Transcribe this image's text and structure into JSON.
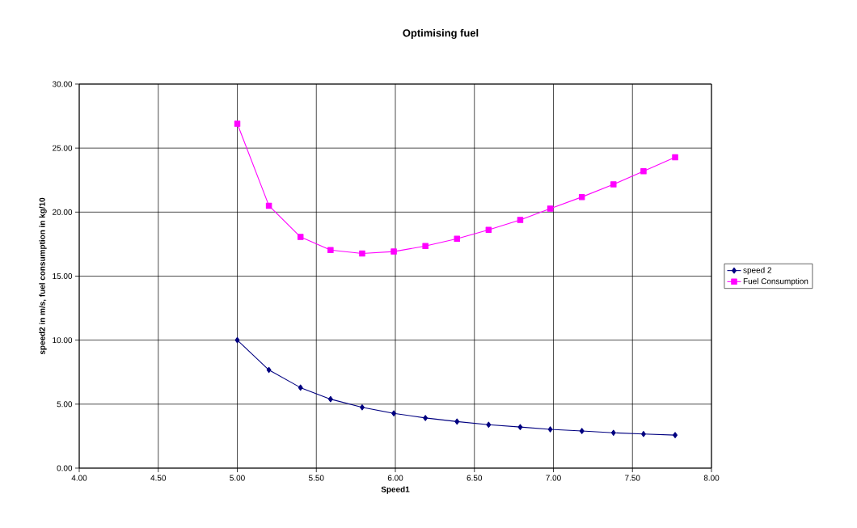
{
  "chart_data": {
    "type": "line",
    "title": "Optimising fuel",
    "xlabel": "Speed1",
    "ylabel": "speed2 in m/s, fuel consumption in kg/10",
    "x": [
      5.0,
      5.2,
      5.4,
      5.59,
      5.79,
      5.99,
      6.19,
      6.39,
      6.59,
      6.79,
      6.98,
      7.18,
      7.38,
      7.57,
      7.77
    ],
    "series": [
      {
        "name": "speed 2",
        "color": "#000080",
        "marker": "diamond",
        "values": [
          10.0,
          7.67,
          6.29,
          5.39,
          4.75,
          4.28,
          3.92,
          3.64,
          3.39,
          3.21,
          3.03,
          2.9,
          2.76,
          2.67,
          2.58
        ]
      },
      {
        "name": "Fuel Consumption",
        "color": "#ff00ff",
        "marker": "square",
        "values": [
          26.9,
          20.5,
          18.06,
          17.04,
          16.77,
          16.92,
          17.35,
          17.92,
          18.62,
          19.39,
          20.27,
          21.18,
          22.17,
          23.19,
          24.28
        ]
      }
    ],
    "xlim": [
      4.0,
      8.0
    ],
    "xticks": [
      {
        "value": 4.0,
        "label": "4.00"
      },
      {
        "value": 4.5,
        "label": "4.50"
      },
      {
        "value": 5.0,
        "label": "5.00"
      },
      {
        "value": 5.5,
        "label": "5.50"
      },
      {
        "value": 6.0,
        "label": "6.00"
      },
      {
        "value": 6.5,
        "label": "6.50"
      },
      {
        "value": 7.0,
        "label": "7.00"
      },
      {
        "value": 7.5,
        "label": "7.50"
      },
      {
        "value": 8.0,
        "label": "8.00"
      }
    ],
    "ylim": [
      0,
      30
    ],
    "yticks": [
      {
        "value": 0,
        "label": "0.00"
      },
      {
        "value": 5,
        "label": "5.00"
      },
      {
        "value": 10,
        "label": "10.00"
      },
      {
        "value": 15,
        "label": "15.00"
      },
      {
        "value": 20,
        "label": "20.00"
      },
      {
        "value": 25,
        "label": "25.00"
      },
      {
        "value": 30,
        "label": "30.00"
      }
    ],
    "grid": true,
    "legend": "right",
    "line_style": "solid"
  }
}
